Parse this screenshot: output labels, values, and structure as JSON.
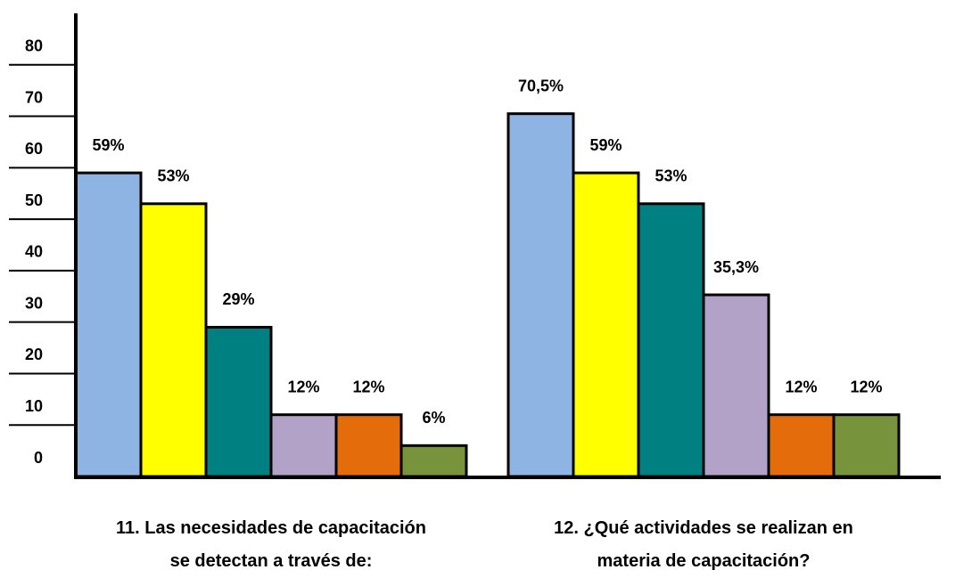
{
  "chart_data": {
    "type": "bar",
    "categories": [
      "11. Las necesidades de capacitación\nse detectan a través de:",
      "12. ¿Qué actividades se realizan en\nmateria de capacitación?"
    ],
    "series": [
      {
        "color": "#8eb4e3",
        "values": [
          59,
          70.5
        ],
        "value_labels": [
          "59%",
          "70,5%"
        ]
      },
      {
        "color": "#ffff00",
        "values": [
          53,
          59
        ],
        "value_labels": [
          "53%",
          "59%"
        ]
      },
      {
        "color": "#008080",
        "values": [
          29,
          53
        ],
        "value_labels": [
          "29%",
          "53%"
        ]
      },
      {
        "color": "#b3a2c7",
        "values": [
          12,
          35.3
        ],
        "value_labels": [
          "12%",
          "35,3%"
        ]
      },
      {
        "color": "#e46c0a",
        "values": [
          12,
          12
        ],
        "value_labels": [
          "12%",
          "12%"
        ]
      },
      {
        "color": "#77933c",
        "values": [
          6,
          12
        ],
        "value_labels": [
          "6%",
          "12%"
        ]
      }
    ],
    "ylim": [
      0,
      90
    ],
    "yticks": [
      0,
      10,
      20,
      30,
      40,
      50,
      60,
      70,
      80
    ]
  }
}
